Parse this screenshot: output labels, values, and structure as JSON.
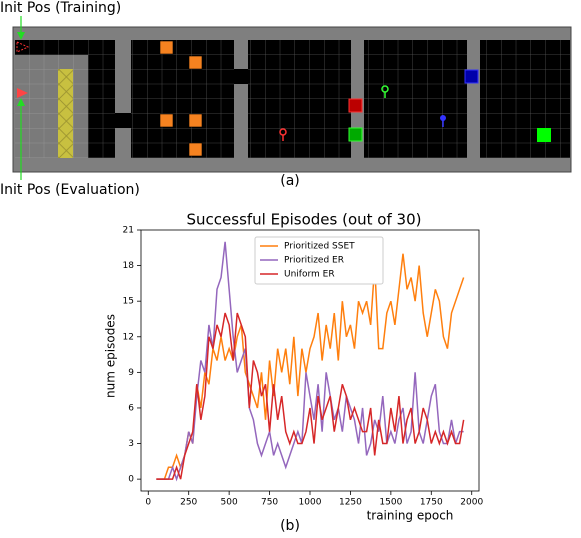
{
  "panel_a": {
    "label_training": "Init Pos (Training)",
    "label_evaluation": "Init Pos (Evaluation)",
    "caption": "(a)"
  },
  "chart_data": {
    "type": "line",
    "title": "Successful Episodes (out of 30)",
    "xlabel": "training epoch",
    "ylabel": "num episodes",
    "caption": "(b)",
    "x": [
      50,
      75,
      100,
      125,
      150,
      175,
      200,
      225,
      250,
      275,
      300,
      325,
      350,
      375,
      400,
      425,
      450,
      475,
      500,
      525,
      550,
      575,
      600,
      625,
      650,
      675,
      700,
      725,
      750,
      775,
      800,
      825,
      850,
      875,
      900,
      925,
      950,
      975,
      1000,
      1025,
      1050,
      1075,
      1100,
      1125,
      1150,
      1175,
      1200,
      1225,
      1250,
      1275,
      1300,
      1325,
      1350,
      1375,
      1400,
      1425,
      1450,
      1475,
      1500,
      1525,
      1550,
      1575,
      1600,
      1625,
      1650,
      1675,
      1700,
      1725,
      1750,
      1775,
      1800,
      1825,
      1850,
      1875,
      1900,
      1925,
      1950
    ],
    "series": [
      {
        "name": "Prioritized SSET",
        "color": "#ff7f0e",
        "values": [
          0,
          0,
          0,
          1,
          1,
          2,
          1,
          2,
          4,
          3,
          8,
          6,
          9,
          8,
          11,
          10,
          12,
          10,
          11,
          10,
          12,
          13,
          9,
          8,
          7,
          6,
          9,
          5,
          10,
          7,
          11,
          9,
          11,
          8,
          12,
          7,
          11,
          9,
          11,
          12,
          14,
          10,
          13,
          11,
          14,
          10,
          15,
          12,
          13,
          11,
          15,
          14,
          15,
          13,
          18,
          11,
          11,
          14,
          15,
          13,
          16,
          19,
          16,
          17,
          15,
          18,
          14,
          12,
          14,
          16,
          15,
          12,
          11,
          14,
          15,
          16,
          17
        ]
      },
      {
        "name": "Prioritized ER",
        "color": "#9467bd",
        "values": [
          0,
          0,
          0,
          0,
          1,
          0,
          1,
          2,
          4,
          3,
          7,
          10,
          9,
          13,
          11,
          16,
          17,
          20,
          16,
          12,
          9,
          10,
          11,
          6,
          5,
          3,
          2,
          3,
          4,
          2,
          3,
          2,
          1,
          2,
          3,
          4,
          3,
          9,
          7,
          5,
          8,
          4,
          9,
          7,
          5,
          6,
          4,
          7,
          6,
          5,
          3,
          6,
          2,
          3,
          5,
          4,
          7,
          3,
          4,
          3,
          5,
          6,
          3,
          4,
          9,
          4,
          3,
          5,
          7,
          8,
          4,
          3,
          3,
          5,
          3,
          4,
          4
        ]
      },
      {
        "name": "Uniform ER",
        "color": "#d62728",
        "values": [
          0,
          0,
          0,
          0,
          0,
          1,
          0,
          2,
          3,
          4,
          8,
          5,
          7,
          12,
          11,
          13,
          12,
          14,
          13,
          10,
          14,
          13,
          12,
          6,
          10,
          9,
          7,
          8,
          4,
          8,
          5,
          7,
          4,
          3,
          4,
          3,
          3,
          4,
          6,
          3,
          7,
          5,
          6,
          7,
          4,
          6,
          8,
          7,
          5,
          6,
          5,
          4,
          4,
          6,
          2,
          5,
          3,
          3,
          6,
          4,
          7,
          3,
          5,
          6,
          3,
          4,
          6,
          5,
          3,
          4,
          3,
          4,
          3,
          4,
          3,
          3,
          5
        ]
      }
    ],
    "xlim": [
      -45,
      2045
    ],
    "xticks": [
      0,
      250,
      500,
      750,
      1000,
      1250,
      1500,
      1750,
      2000
    ],
    "ylim": [
      -1,
      21
    ],
    "yticks": [
      0,
      3,
      6,
      9,
      12,
      15,
      18,
      21
    ],
    "legend": "upper left",
    "grid": false
  }
}
